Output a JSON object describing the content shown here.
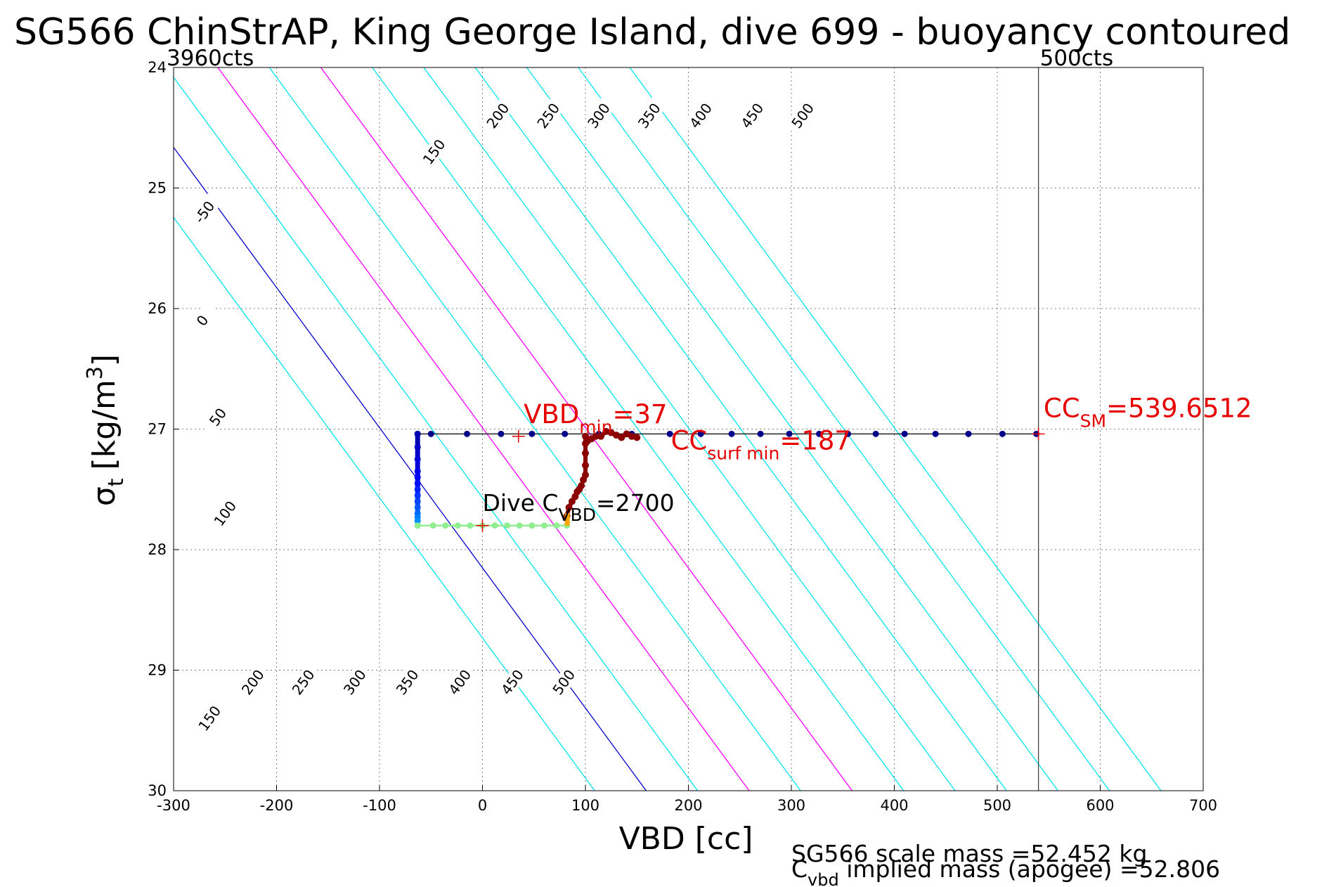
{
  "chart_data": {
    "type": "line",
    "title": "SG566 ChinStrAP, King George Island, dive 699 - buoyancy contoured",
    "xlabel": "VBD [cc]",
    "ylabel_symbol": "σ",
    "ylabel_sub": "t",
    "ylabel_unit": "[kg/m",
    "ylabel_sup": "3",
    "ylabel_close": "]",
    "xlim": [
      -300,
      700
    ],
    "ylim": [
      24,
      30
    ],
    "y_reversed": true,
    "grid": true,
    "xticks": [
      "-300",
      "-200",
      "-100",
      "0",
      "100",
      "200",
      "300",
      "400",
      "500",
      "600",
      "700"
    ],
    "yticks": [
      "24",
      "25",
      "26",
      "27",
      "28",
      "29",
      "30"
    ],
    "colors": {
      "contour": "#00e5ee",
      "contour_special": "#ff00ff",
      "contour_zero": "#0000cc",
      "annotation": "#e60000",
      "marker": "#00008b",
      "hold": "#8b0000",
      "bottom": "#90ee90"
    },
    "contours": {
      "slope_cc_per_kgm3": 86,
      "reference_sigma": 24,
      "levels": [
        {
          "value": -50,
          "vbd_at_ref": -407,
          "color": "#00e5ee",
          "label": "-50"
        },
        {
          "value": 0,
          "vbd_at_ref": -357,
          "color": "#0000cc",
          "label": "0"
        },
        {
          "value": 50,
          "vbd_at_ref": -307,
          "color": "#00e5ee",
          "label": "50"
        },
        {
          "value": 100,
          "vbd_at_ref": -257,
          "color": "#ff00ff",
          "label": "100"
        },
        {
          "value": 150,
          "vbd_at_ref": -207,
          "color": "#00e5ee",
          "label": "150"
        },
        {
          "value": 200,
          "vbd_at_ref": -157,
          "color": "#ff00ff",
          "label": "200"
        },
        {
          "value": 250,
          "vbd_at_ref": -107,
          "color": "#00e5ee",
          "label": "250"
        },
        {
          "value": 300,
          "vbd_at_ref": -57,
          "color": "#00e5ee",
          "label": "300"
        },
        {
          "value": 350,
          "vbd_at_ref": -7,
          "color": "#00e5ee",
          "label": "350"
        },
        {
          "value": 400,
          "vbd_at_ref": 43,
          "color": "#00e5ee",
          "label": "400"
        },
        {
          "value": 450,
          "vbd_at_ref": 93,
          "color": "#00e5ee",
          "label": "450"
        },
        {
          "value": 500,
          "vbd_at_ref": 143,
          "color": "#00e5ee",
          "label": "500"
        }
      ],
      "label_points": [
        {
          "text": "150",
          "x": -47,
          "y": 24.7
        },
        {
          "text": "200",
          "x": 15,
          "y": 24.4
        },
        {
          "text": "250",
          "x": 64,
          "y": 24.4
        },
        {
          "text": "300",
          "x": 113,
          "y": 24.4
        },
        {
          "text": "350",
          "x": 162,
          "y": 24.4
        },
        {
          "text": "400",
          "x": 212,
          "y": 24.4
        },
        {
          "text": "450",
          "x": 262,
          "y": 24.4
        },
        {
          "text": "500",
          "x": 311,
          "y": 24.4
        },
        {
          "text": "-50",
          "x": -270,
          "y": 25.2
        },
        {
          "text": "0",
          "x": -272,
          "y": 26.1
        },
        {
          "text": "50",
          "x": -257,
          "y": 26.9
        },
        {
          "text": "100",
          "x": -250,
          "y": 27.7
        },
        {
          "text": "150",
          "x": -265,
          "y": 29.4
        },
        {
          "text": "200",
          "x": -223,
          "y": 29.1
        },
        {
          "text": "250",
          "x": -174,
          "y": 29.1
        },
        {
          "text": "300",
          "x": -124,
          "y": 29.1
        },
        {
          "text": "350",
          "x": -73,
          "y": 29.1
        },
        {
          "text": "400",
          "x": -22,
          "y": 29.1
        },
        {
          "text": "450",
          "x": 29,
          "y": 29.1
        },
        {
          "text": "500",
          "x": 79,
          "y": 29.1
        }
      ]
    },
    "series": [
      {
        "name": "",
        "role": "surface",
        "color": "#00008b",
        "x": [
          -63,
          -50,
          -15,
          18,
          48,
          80,
          113,
          145,
          182,
          212,
          242,
          270,
          298,
          327,
          355,
          382,
          410,
          440,
          472,
          505,
          538
        ],
        "y": [
          27.04,
          27.04,
          27.04,
          27.04,
          27.04,
          27.04,
          27.04,
          27.04,
          27.04,
          27.04,
          27.04,
          27.04,
          27.04,
          27.04,
          27.04,
          27.04,
          27.04,
          27.04,
          27.04,
          27.04,
          27.04
        ]
      },
      {
        "name": "",
        "role": "descent",
        "x": [
          -63,
          -63,
          -63,
          -63,
          -63,
          -63,
          -63,
          -63,
          -63,
          -63,
          -63,
          -63,
          -63,
          -63
        ],
        "y": [
          27.04,
          27.15,
          27.25,
          27.35,
          27.4,
          27.45,
          27.5,
          27.55,
          27.6,
          27.65,
          27.7,
          27.73,
          27.76,
          27.8
        ]
      },
      {
        "name": "",
        "role": "bottom",
        "color": "#90ee90",
        "x": [
          -63,
          -48,
          -36,
          -24,
          -12,
          0,
          12,
          24,
          36,
          48,
          60,
          72,
          82
        ],
        "y": [
          27.8,
          27.8,
          27.8,
          27.8,
          27.8,
          27.8,
          27.8,
          27.8,
          27.8,
          27.8,
          27.8,
          27.8,
          27.8
        ]
      },
      {
        "name": "",
        "role": "ascent",
        "color": "#8b0000",
        "x": [
          82,
          84,
          87,
          90,
          92,
          94,
          96,
          98,
          100,
          100,
          100,
          100,
          100,
          102,
          106,
          110,
          115,
          120,
          125,
          130,
          135,
          140,
          145,
          150
        ],
        "y": [
          27.72,
          27.65,
          27.6,
          27.56,
          27.52,
          27.5,
          27.47,
          27.42,
          27.38,
          27.3,
          27.2,
          27.12,
          27.06,
          27.1,
          27.08,
          27.06,
          27.06,
          27.02,
          27.03,
          27.05,
          27.07,
          27.04,
          27.06,
          27.07
        ]
      }
    ],
    "hlines": [
      {
        "y": 27.04,
        "x": [
          -63,
          540
        ]
      }
    ],
    "vlines": [
      {
        "x": 540,
        "label": "500cts"
      }
    ],
    "corner_label": "3960cts",
    "markers": [
      {
        "x": 35,
        "y": 27.06,
        "symbol": "+"
      },
      {
        "x": 0,
        "y": 27.8,
        "symbol": "+"
      },
      {
        "x": 540,
        "y": 27.04,
        "symbol": "+"
      }
    ],
    "annotations": {
      "vbd_min": {
        "main": "VBD",
        "sub": "min",
        "rest": "=37",
        "x": 40,
        "y": 26.95
      },
      "cc_surf_min": {
        "main": "CC",
        "sub": "surf min",
        "rest": "=187",
        "x": 183,
        "y": 27.17
      },
      "cc_sm": {
        "main": "CC",
        "sub": "SM",
        "rest": "=539.6512",
        "x": 545,
        "y": 26.9
      },
      "dive_c_vbd": {
        "main": "Dive C",
        "sub": "VBD",
        "rest": "=2700",
        "x": 0,
        "y": 27.68
      }
    },
    "footer": {
      "line1": "SG566 scale mass =52.452 kg",
      "line2_main": "C",
      "line2_sub": "vbd",
      "line2_rest": " implied mass (apogee) =52.806"
    }
  }
}
